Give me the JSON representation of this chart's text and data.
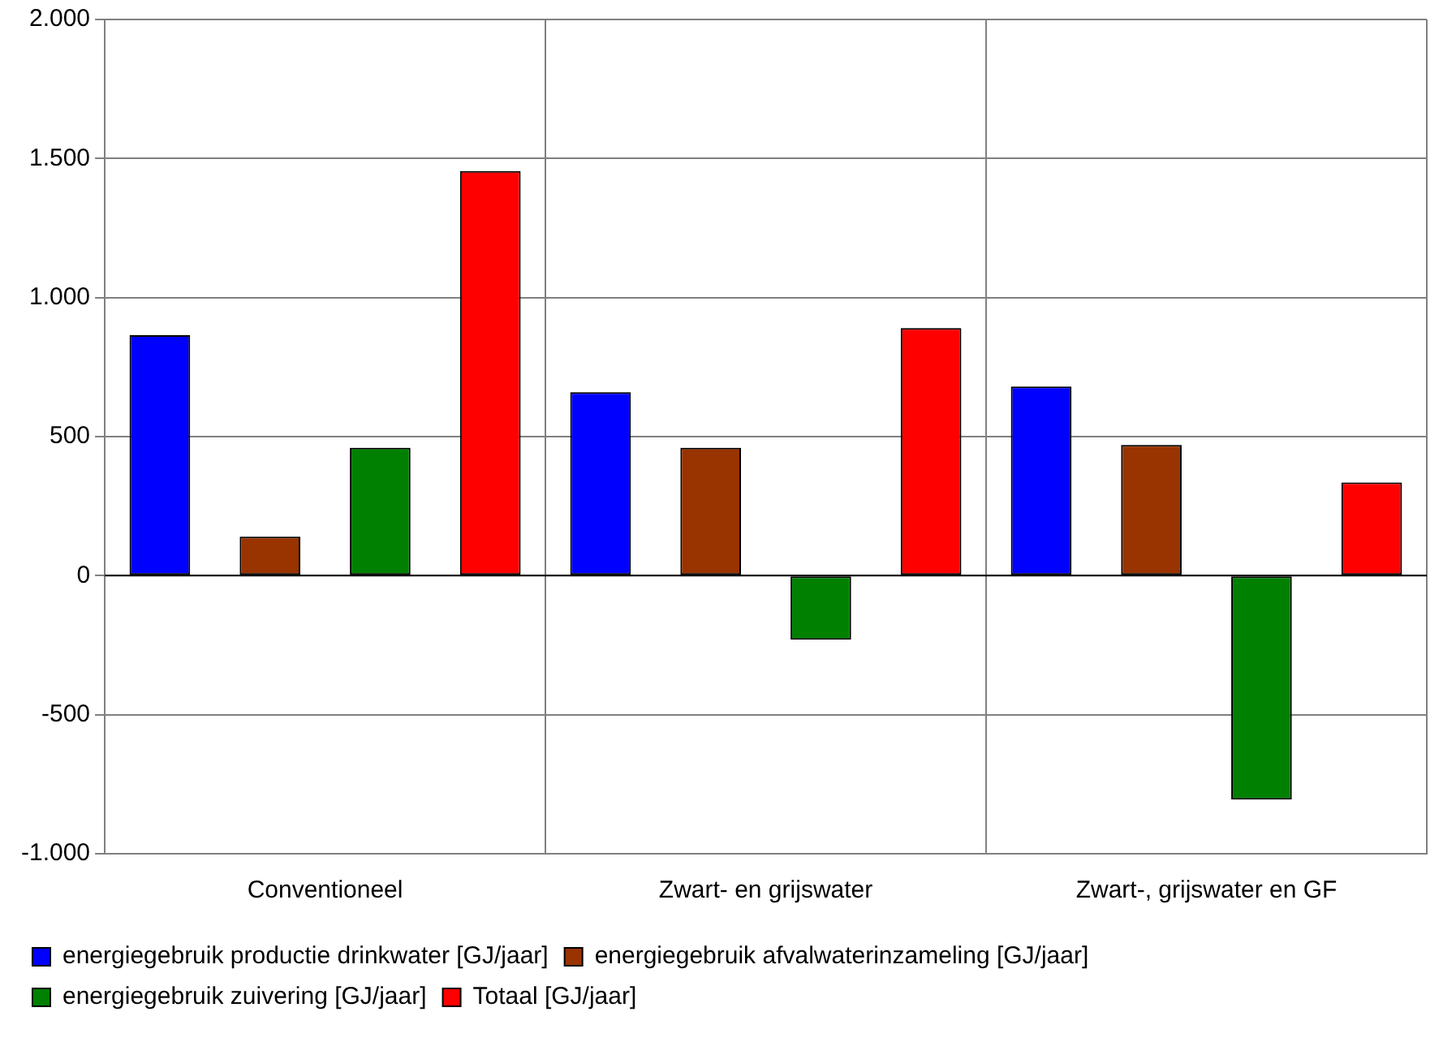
{
  "chart_data": {
    "type": "bar",
    "categories": [
      "Conventioneel",
      "Zwart- en grijswater",
      "Zwart-, grijswater en GF"
    ],
    "series": [
      {
        "name": "energiegebruik productie drinkwater [GJ/jaar]",
        "color": "#0000ff",
        "values": [
          865,
          660,
          680
        ]
      },
      {
        "name": "energiegebruik afvalwaterinzameling [GJ/jaar]",
        "color": "#993300",
        "values": [
          140,
          460,
          470
        ]
      },
      {
        "name": "energiegebruik zuivering [GJ/jaar]",
        "color": "#008000",
        "values": [
          460,
          -230,
          -805
        ]
      },
      {
        "name": "Totaal [GJ/jaar]",
        "color": "#ff0000",
        "values": [
          1455,
          890,
          335
        ]
      }
    ],
    "ylim": [
      -1000,
      2000
    ],
    "yticks": [
      {
        "value": -1000,
        "label": "-1.000"
      },
      {
        "value": -500,
        "label": "-500"
      },
      {
        "value": 0,
        "label": "0"
      },
      {
        "value": 500,
        "label": "500"
      },
      {
        "value": 1000,
        "label": "1.000"
      },
      {
        "value": 1500,
        "label": "1.500"
      },
      {
        "value": 2000,
        "label": "2.000"
      }
    ],
    "grid": true,
    "legend": "bottom"
  }
}
